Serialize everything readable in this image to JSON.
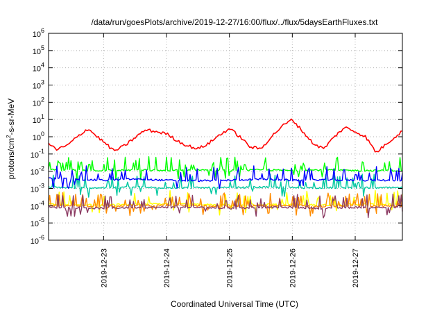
{
  "chart_data": {
    "type": "line",
    "title": "/data/run/goesPlots/archive/2019-12-27/16:00/flux/../flux/5daysEarthFluxes.txt",
    "xlabel": "Coordinated Universal Time (UTC)",
    "ylabel": "protons/cm2-s-sr-MeV",
    "ylabel_parts": {
      "base": "protons/cm",
      "sup": "2",
      "rest": "-s-sr-MeV"
    },
    "yscale": "log",
    "ylim": [
      1e-06,
      1000000.0
    ],
    "xlim": [
      "2019-12-22T03:00",
      "2019-12-27T18:00"
    ],
    "grid": true,
    "y_ticks": [
      {
        "base": "10",
        "exp": "-6",
        "value": 1e-06
      },
      {
        "base": "10",
        "exp": "-5",
        "value": 1e-05
      },
      {
        "base": "10",
        "exp": "-4",
        "value": 0.0001
      },
      {
        "base": "10",
        "exp": "-3",
        "value": 0.001
      },
      {
        "base": "10",
        "exp": "-2",
        "value": 0.01
      },
      {
        "base": "10",
        "exp": "-1",
        "value": 0.1
      },
      {
        "base": "10",
        "exp": "0",
        "value": 1
      },
      {
        "base": "10",
        "exp": "1",
        "value": 10.0
      },
      {
        "base": "10",
        "exp": "2",
        "value": 100.0
      },
      {
        "base": "10",
        "exp": "3",
        "value": 1000.0
      },
      {
        "base": "10",
        "exp": "4",
        "value": 10000.0
      },
      {
        "base": "10",
        "exp": "5",
        "value": 100000.0
      },
      {
        "base": "10",
        "exp": "6",
        "value": 1000000.0
      }
    ],
    "x_ticks": [
      "2019-12-23",
      "2019-12-24",
      "2019-12-25",
      "2019-12-26",
      "2019-12-27"
    ],
    "series": [
      {
        "color": "#ff0000",
        "kind": "wave",
        "x": [
          "2019-12-22T03:00",
          "2019-12-22T06:00",
          "2019-12-22T10:00",
          "2019-12-22T14:00",
          "2019-12-22T18:00",
          "2019-12-22T21:00",
          "2019-12-23T00:00",
          "2019-12-23T04:00",
          "2019-12-23T08:00",
          "2019-12-23T12:00",
          "2019-12-23T16:00",
          "2019-12-23T20:00",
          "2019-12-24T00:00",
          "2019-12-24T04:00",
          "2019-12-24T08:00",
          "2019-12-24T12:00",
          "2019-12-24T16:00",
          "2019-12-24T20:00",
          "2019-12-25T00:00",
          "2019-12-25T04:00",
          "2019-12-25T08:00",
          "2019-12-25T12:00",
          "2019-12-25T16:00",
          "2019-12-25T20:00",
          "2019-12-26T00:00",
          "2019-12-26T04:00",
          "2019-12-26T08:00",
          "2019-12-26T12:00",
          "2019-12-26T16:00",
          "2019-12-26T20:00",
          "2019-12-27T00:00",
          "2019-12-27T04:00",
          "2019-12-27T08:00",
          "2019-12-27T12:00",
          "2019-12-27T18:00"
        ],
        "y": [
          0.4,
          0.18,
          0.3,
          1.0,
          3.0,
          1.2,
          0.5,
          0.15,
          0.3,
          0.9,
          2.5,
          2.0,
          1.5,
          0.6,
          0.3,
          0.2,
          0.4,
          1.2,
          3.0,
          1.0,
          0.25,
          0.2,
          1.0,
          4.0,
          10.0,
          2.0,
          0.4,
          0.2,
          1.0,
          3.5,
          2.0,
          1.0,
          0.12,
          0.4,
          2.2
        ]
      },
      {
        "color": "#00ff00",
        "kind": "noisy",
        "x": [
          "2019-12-22T03:00",
          "2019-12-22T12:00",
          "2019-12-23T00:00",
          "2019-12-23T12:00",
          "2019-12-24T00:00",
          "2019-12-24T12:00",
          "2019-12-25T00:00",
          "2019-12-25T12:00",
          "2019-12-26T00:00",
          "2019-12-26T12:00",
          "2019-12-27T00:00",
          "2019-12-27T18:00"
        ],
        "y": [
          0.012,
          0.012,
          0.011,
          0.012,
          0.011,
          0.012,
          0.011,
          0.012,
          0.011,
          0.012,
          0.011,
          0.011
        ]
      },
      {
        "color": "#0000ff",
        "kind": "noisy",
        "x": [
          "2019-12-22T03:00",
          "2019-12-22T12:00",
          "2019-12-23T00:00",
          "2019-12-23T12:00",
          "2019-12-24T00:00",
          "2019-12-24T12:00",
          "2019-12-25T00:00",
          "2019-12-25T12:00",
          "2019-12-26T00:00",
          "2019-12-26T12:00",
          "2019-12-27T00:00",
          "2019-12-27T18:00"
        ],
        "y": [
          0.004,
          0.0035,
          0.003,
          0.0035,
          0.003,
          0.0028,
          0.003,
          0.0035,
          0.003,
          0.0032,
          0.003,
          0.003
        ]
      },
      {
        "color": "#00c8a0",
        "kind": "noisy",
        "x": [
          "2019-12-22T03:00",
          "2019-12-22T12:00",
          "2019-12-23T00:00",
          "2019-12-23T12:00",
          "2019-12-24T00:00",
          "2019-12-24T12:00",
          "2019-12-25T00:00",
          "2019-12-25T12:00",
          "2019-12-26T00:00",
          "2019-12-26T12:00",
          "2019-12-27T00:00",
          "2019-12-27T18:00"
        ],
        "y": [
          0.0012,
          0.0011,
          0.0011,
          0.0012,
          0.0011,
          0.0011,
          0.0011,
          0.0012,
          0.0011,
          0.0011,
          0.0011,
          0.0011
        ]
      },
      {
        "color": "#ffff00",
        "kind": "noisy",
        "x": [
          "2019-12-22T03:00",
          "2019-12-22T12:00",
          "2019-12-23T00:00",
          "2019-12-23T12:00",
          "2019-12-24T00:00",
          "2019-12-24T12:00",
          "2019-12-25T00:00",
          "2019-12-25T12:00",
          "2019-12-26T00:00",
          "2019-12-26T12:00",
          "2019-12-27T00:00",
          "2019-12-27T18:00"
        ],
        "y": [
          0.00012,
          0.00012,
          0.00011,
          0.00012,
          0.00013,
          0.00012,
          0.00011,
          0.00012,
          0.00012,
          0.00011,
          0.00012,
          0.00012
        ]
      },
      {
        "color": "#ff8c00",
        "kind": "noisy",
        "x": [
          "2019-12-22T03:00",
          "2019-12-22T12:00",
          "2019-12-23T00:00",
          "2019-12-23T12:00",
          "2019-12-24T00:00",
          "2019-12-24T12:00",
          "2019-12-25T00:00",
          "2019-12-25T12:00",
          "2019-12-26T00:00",
          "2019-12-26T12:00",
          "2019-12-27T00:00",
          "2019-12-27T18:00"
        ],
        "y": [
          0.0001,
          0.0001,
          9e-05,
          0.0001,
          0.00011,
          0.0001,
          9e-05,
          0.0001,
          0.0001,
          9e-05,
          0.0001,
          0.0001
        ]
      },
      {
        "color": "#8b3a62",
        "kind": "noisy",
        "x": [
          "2019-12-22T03:00",
          "2019-12-22T12:00",
          "2019-12-23T00:00",
          "2019-12-23T12:00",
          "2019-12-24T00:00",
          "2019-12-24T12:00",
          "2019-12-25T00:00",
          "2019-12-25T12:00",
          "2019-12-26T00:00",
          "2019-12-26T12:00",
          "2019-12-27T00:00",
          "2019-12-27T18:00"
        ],
        "y": [
          8e-05,
          8e-05,
          7e-05,
          8e-05,
          8e-05,
          8e-05,
          7e-05,
          8e-05,
          8e-05,
          7e-05,
          8e-05,
          8e-05
        ]
      }
    ]
  }
}
